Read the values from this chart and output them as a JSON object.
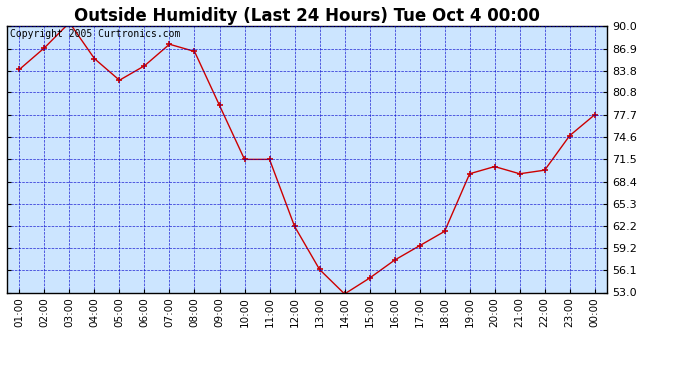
{
  "title": "Outside Humidity (Last 24 Hours) Tue Oct 4 00:00",
  "copyright": "Copyright 2005 Curtronics.com",
  "x_labels": [
    "01:00",
    "02:00",
    "03:00",
    "04:00",
    "05:00",
    "06:00",
    "07:00",
    "08:00",
    "09:00",
    "10:00",
    "11:00",
    "12:00",
    "13:00",
    "14:00",
    "15:00",
    "16:00",
    "17:00",
    "18:00",
    "19:00",
    "20:00",
    "21:00",
    "22:00",
    "23:00",
    "00:00"
  ],
  "x_values": [
    1,
    2,
    3,
    4,
    5,
    6,
    7,
    8,
    9,
    10,
    11,
    12,
    13,
    14,
    15,
    16,
    17,
    18,
    19,
    20,
    21,
    22,
    23,
    24
  ],
  "y_values": [
    84.0,
    87.0,
    90.5,
    85.5,
    82.5,
    84.5,
    87.5,
    86.5,
    79.0,
    71.5,
    71.5,
    62.2,
    56.2,
    52.8,
    55.0,
    57.5,
    59.5,
    61.5,
    69.5,
    70.5,
    69.5,
    70.0,
    74.8,
    77.7
  ],
  "ylim": [
    53.0,
    90.0
  ],
  "yticks": [
    53.0,
    56.1,
    59.2,
    62.2,
    65.3,
    68.4,
    71.5,
    74.6,
    77.7,
    80.8,
    83.8,
    86.9,
    90.0
  ],
  "line_color": "#cc0000",
  "marker_color": "#000000",
  "bg_color": "#cce5ff",
  "grid_color": "#0000cc",
  "border_color": "#000000",
  "title_fontsize": 12,
  "copyright_fontsize": 7
}
